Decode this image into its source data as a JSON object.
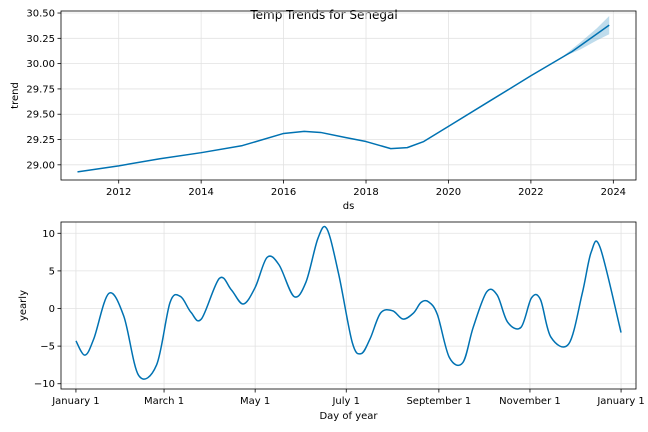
{
  "figure_title": "Temp Trends for Senegal",
  "chart_data": [
    {
      "type": "line",
      "xlabel": "ds",
      "ylabel": "trend",
      "xlim": [
        2010.6,
        2024.55
      ],
      "ylim": [
        28.85,
        30.52
      ],
      "xticks": [
        2012,
        2014,
        2016,
        2018,
        2020,
        2022,
        2024
      ],
      "xtick_labels": [
        "2012",
        "2014",
        "2016",
        "2018",
        "2020",
        "2022",
        "2024"
      ],
      "yticks": [
        29.0,
        29.25,
        29.5,
        29.75,
        30.0,
        30.25,
        30.5
      ],
      "ytick_labels": [
        "29.00",
        "29.25",
        "29.50",
        "29.75",
        "30.00",
        "30.25",
        "30.50"
      ],
      "grid": true,
      "line_color": "#0072B2",
      "band_color": "#0072B2",
      "series": [
        {
          "x": [
            2011.0,
            2012.0,
            2013.0,
            2014.0,
            2015.0,
            2016.0,
            2016.5,
            2016.9,
            2017.5,
            2018.0,
            2018.6,
            2019.0,
            2019.4,
            2020.0,
            2021.0,
            2022.0,
            2023.0,
            2023.9
          ],
          "y": [
            28.93,
            28.99,
            29.06,
            29.12,
            29.19,
            29.31,
            29.33,
            29.32,
            29.27,
            29.23,
            29.16,
            29.17,
            29.23,
            29.38,
            29.63,
            29.88,
            30.12,
            30.38
          ]
        }
      ],
      "uncertainty_band": {
        "x": [
          2022.8,
          2023.2,
          2023.6,
          2023.9
        ],
        "lower": [
          30.07,
          30.14,
          30.23,
          30.29
        ],
        "upper": [
          30.08,
          30.21,
          30.35,
          30.47
        ]
      }
    },
    {
      "type": "line",
      "xlabel": "Day of year",
      "ylabel": "yearly",
      "xlim": [
        -10,
        375
      ],
      "ylim": [
        -10.7,
        11.5
      ],
      "xticks": [
        0,
        59,
        120,
        181,
        243,
        304,
        365
      ],
      "xtick_labels": [
        "January 1",
        "March 1",
        "May 1",
        "July 1",
        "September 1",
        "November 1",
        "January 1"
      ],
      "yticks": [
        -10,
        -5,
        0,
        5,
        10
      ],
      "ytick_labels": [
        "−10",
        "−5",
        "0",
        "5",
        "10"
      ],
      "grid": true,
      "line_color": "#0072B2",
      "series": [
        {
          "x": [
            0,
            6,
            12,
            22,
            32,
            42,
            54,
            63,
            70,
            77,
            84,
            96,
            104,
            112,
            120,
            128,
            136,
            146,
            154,
            162,
            168,
            176,
            185,
            191,
            197,
            204,
            212,
            219,
            226,
            231,
            236,
            242,
            250,
            259,
            266,
            275,
            282,
            289,
            298,
            305,
            311,
            318,
            330,
            339,
            345,
            351,
            365
          ],
          "y": [
            -4.3,
            -6.2,
            -4.0,
            2.0,
            -1.0,
            -8.9,
            -7.5,
            0.8,
            1.6,
            -0.5,
            -1.4,
            4.0,
            2.5,
            0.6,
            2.8,
            6.8,
            5.8,
            1.6,
            3.5,
            9.3,
            10.6,
            4.5,
            -4.5,
            -6.0,
            -4.0,
            -0.6,
            -0.3,
            -1.4,
            -0.6,
            0.8,
            0.9,
            -0.8,
            -6.5,
            -7.2,
            -2.5,
            2.2,
            1.8,
            -1.8,
            -2.5,
            1.4,
            1.2,
            -3.8,
            -4.7,
            2.0,
            7.5,
            8.1,
            -3.2
          ]
        }
      ]
    }
  ]
}
